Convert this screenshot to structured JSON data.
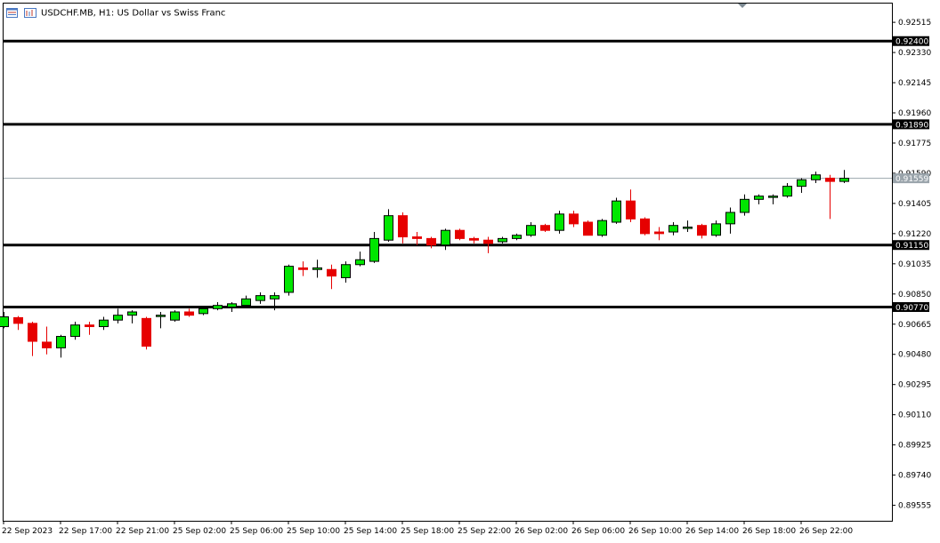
{
  "window": {
    "title": "USDCHF.MB, H1:  US Dollar vs Swiss Franc"
  },
  "icons": {
    "menu_icon": "chart-window-icon",
    "restore_icon": "chart-restore-icon",
    "scroll_marker": "shift-marker-triangle-icon"
  },
  "colors": {
    "bull": "#00e600",
    "bear": "#e60000",
    "candle_border": "#000000",
    "level_line": "#000000",
    "current_price_line": "#9aa4ab",
    "current_price_tag_bg": "#9aa4ab",
    "level_tag_bg": "#000000",
    "background": "#ffffff"
  },
  "chart_data": {
    "type": "candlestick",
    "symbol": "USDCHF.MB",
    "timeframe": "H1",
    "description": "US Dollar vs Swiss Franc",
    "ylim": [
      0.8946,
      0.9263
    ],
    "y_ticks": [
      "0.92515",
      "0.92330",
      "0.92145",
      "0.91960",
      "0.91775",
      "0.91590",
      "0.91405",
      "0.91220",
      "0.91035",
      "0.90850",
      "0.90665",
      "0.90480",
      "0.90295",
      "0.90110",
      "0.89925",
      "0.89740",
      "0.89555"
    ],
    "x_ticks": [
      "22 Sep 2023",
      "22 Sep 17:00",
      "22 Sep 21:00",
      "25 Sep 02:00",
      "25 Sep 06:00",
      "25 Sep 10:00",
      "25 Sep 14:00",
      "25 Sep 18:00",
      "25 Sep 22:00",
      "26 Sep 02:00",
      "26 Sep 06:00",
      "26 Sep 10:00",
      "26 Sep 14:00",
      "26 Sep 18:00",
      "26 Sep 22:00"
    ],
    "horizontal_levels": [
      "0.92400",
      "0.91890",
      "0.91150",
      "0.90770"
    ],
    "current_price": "0.91559",
    "candles": [
      {
        "o": 0.9065,
        "h": 0.9074,
        "l": 0.9064,
        "c": 0.9071
      },
      {
        "o": 0.90705,
        "h": 0.90715,
        "l": 0.9063,
        "c": 0.9067
      },
      {
        "o": 0.9067,
        "h": 0.9068,
        "l": 0.9047,
        "c": 0.9056
      },
      {
        "o": 0.90555,
        "h": 0.9065,
        "l": 0.9048,
        "c": 0.9052
      },
      {
        "o": 0.9052,
        "h": 0.906,
        "l": 0.9046,
        "c": 0.9059
      },
      {
        "o": 0.9059,
        "h": 0.9068,
        "l": 0.9057,
        "c": 0.9066
      },
      {
        "o": 0.9066,
        "h": 0.9068,
        "l": 0.906,
        "c": 0.9065
      },
      {
        "o": 0.9065,
        "h": 0.9071,
        "l": 0.9063,
        "c": 0.9069
      },
      {
        "o": 0.9069,
        "h": 0.9076,
        "l": 0.9067,
        "c": 0.9072
      },
      {
        "o": 0.9072,
        "h": 0.9075,
        "l": 0.9067,
        "c": 0.9074
      },
      {
        "o": 0.907,
        "h": 0.9071,
        "l": 0.9051,
        "c": 0.9053
      },
      {
        "o": 0.9072,
        "h": 0.9074,
        "l": 0.9064,
        "c": 0.9072
      },
      {
        "o": 0.9069,
        "h": 0.9075,
        "l": 0.9068,
        "c": 0.9074
      },
      {
        "o": 0.9074,
        "h": 0.9076,
        "l": 0.9071,
        "c": 0.9072
      },
      {
        "o": 0.9073,
        "h": 0.9077,
        "l": 0.9072,
        "c": 0.9076
      },
      {
        "o": 0.9076,
        "h": 0.908,
        "l": 0.9075,
        "c": 0.9078
      },
      {
        "o": 0.9077,
        "h": 0.908,
        "l": 0.9074,
        "c": 0.9079
      },
      {
        "o": 0.9078,
        "h": 0.9084,
        "l": 0.9077,
        "c": 0.9082
      },
      {
        "o": 0.9081,
        "h": 0.9086,
        "l": 0.9079,
        "c": 0.9084
      },
      {
        "o": 0.9082,
        "h": 0.9086,
        "l": 0.9075,
        "c": 0.9084
      },
      {
        "o": 0.9086,
        "h": 0.9103,
        "l": 0.9084,
        "c": 0.9102
      },
      {
        "o": 0.9101,
        "h": 0.9105,
        "l": 0.9096,
        "c": 0.91
      },
      {
        "o": 0.91,
        "h": 0.9106,
        "l": 0.9095,
        "c": 0.9101
      },
      {
        "o": 0.91,
        "h": 0.9103,
        "l": 0.9088,
        "c": 0.9096
      },
      {
        "o": 0.9095,
        "h": 0.9105,
        "l": 0.9092,
        "c": 0.9103
      },
      {
        "o": 0.9103,
        "h": 0.9111,
        "l": 0.9102,
        "c": 0.9106
      },
      {
        "o": 0.9105,
        "h": 0.9123,
        "l": 0.9104,
        "c": 0.9119
      },
      {
        "o": 0.9118,
        "h": 0.9137,
        "l": 0.9117,
        "c": 0.9133
      },
      {
        "o": 0.9133,
        "h": 0.9135,
        "l": 0.9116,
        "c": 0.912
      },
      {
        "o": 0.912,
        "h": 0.9123,
        "l": 0.9115,
        "c": 0.9119
      },
      {
        "o": 0.9119,
        "h": 0.912,
        "l": 0.9113,
        "c": 0.9115
      },
      {
        "o": 0.9115,
        "h": 0.9125,
        "l": 0.9112,
        "c": 0.9124
      },
      {
        "o": 0.9124,
        "h": 0.9125,
        "l": 0.9118,
        "c": 0.9119
      },
      {
        "o": 0.9119,
        "h": 0.912,
        "l": 0.9116,
        "c": 0.9118
      },
      {
        "o": 0.9118,
        "h": 0.912,
        "l": 0.911,
        "c": 0.9116
      },
      {
        "o": 0.9117,
        "h": 0.912,
        "l": 0.9116,
        "c": 0.9119
      },
      {
        "o": 0.9119,
        "h": 0.9122,
        "l": 0.9118,
        "c": 0.9121
      },
      {
        "o": 0.9121,
        "h": 0.9129,
        "l": 0.912,
        "c": 0.9127
      },
      {
        "o": 0.9127,
        "h": 0.9128,
        "l": 0.9123,
        "c": 0.9124
      },
      {
        "o": 0.9124,
        "h": 0.9136,
        "l": 0.9122,
        "c": 0.9134
      },
      {
        "o": 0.9134,
        "h": 0.9136,
        "l": 0.9126,
        "c": 0.9128
      },
      {
        "o": 0.9129,
        "h": 0.913,
        "l": 0.9121,
        "c": 0.9121
      },
      {
        "o": 0.9121,
        "h": 0.9131,
        "l": 0.912,
        "c": 0.913
      },
      {
        "o": 0.9129,
        "h": 0.9144,
        "l": 0.9128,
        "c": 0.9142
      },
      {
        "o": 0.9142,
        "h": 0.9149,
        "l": 0.9129,
        "c": 0.9131
      },
      {
        "o": 0.9131,
        "h": 0.9132,
        "l": 0.9121,
        "c": 0.9122
      },
      {
        "o": 0.9123,
        "h": 0.9126,
        "l": 0.9118,
        "c": 0.9122
      },
      {
        "o": 0.9123,
        "h": 0.9129,
        "l": 0.9121,
        "c": 0.9127
      },
      {
        "o": 0.9126,
        "h": 0.913,
        "l": 0.9123,
        "c": 0.9126
      },
      {
        "o": 0.9127,
        "h": 0.9128,
        "l": 0.9119,
        "c": 0.9121
      },
      {
        "o": 0.9121,
        "h": 0.913,
        "l": 0.912,
        "c": 0.9128
      },
      {
        "o": 0.9128,
        "h": 0.9138,
        "l": 0.9122,
        "c": 0.9135
      },
      {
        "o": 0.9135,
        "h": 0.9146,
        "l": 0.9133,
        "c": 0.9143
      },
      {
        "o": 0.9143,
        "h": 0.9146,
        "l": 0.914,
        "c": 0.9145
      },
      {
        "o": 0.9145,
        "h": 0.9146,
        "l": 0.914,
        "c": 0.9145
      },
      {
        "o": 0.9145,
        "h": 0.9153,
        "l": 0.9144,
        "c": 0.9151
      },
      {
        "o": 0.9151,
        "h": 0.9156,
        "l": 0.9147,
        "c": 0.9155
      },
      {
        "o": 0.9155,
        "h": 0.916,
        "l": 0.9153,
        "c": 0.9158
      },
      {
        "o": 0.9156,
        "h": 0.9158,
        "l": 0.9131,
        "c": 0.9154
      },
      {
        "o": 0.9154,
        "h": 0.9161,
        "l": 0.9153,
        "c": 0.91559
      }
    ]
  }
}
